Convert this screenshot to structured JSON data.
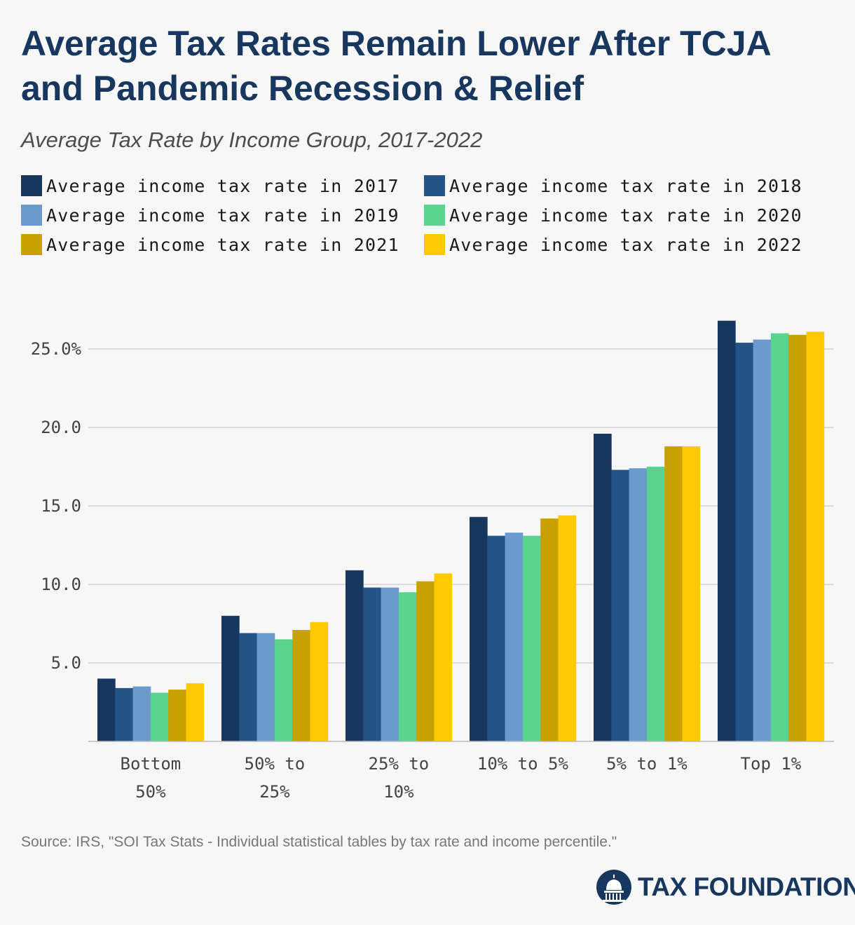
{
  "chart_data": {
    "type": "bar",
    "title": "Average Tax Rates Remain Lower After TCJA and Pandemic Recession & Relief",
    "subtitle": "Average Tax Rate by Income Group, 2017-2022",
    "categories": [
      [
        "Bottom",
        "50%"
      ],
      [
        "50% to",
        "25%"
      ],
      [
        "25% to",
        "10%"
      ],
      [
        "10% to 5%"
      ],
      [
        "5% to 1%"
      ],
      [
        "Top 1%"
      ]
    ],
    "series": [
      {
        "name": "Average income tax rate in 2017",
        "color": "#17375e",
        "values": [
          4.0,
          8.0,
          10.9,
          14.3,
          19.6,
          26.8
        ]
      },
      {
        "name": "Average income tax rate in 2018",
        "color": "#245388",
        "values": [
          3.4,
          6.9,
          9.8,
          13.1,
          17.3,
          25.4
        ]
      },
      {
        "name": "Average income tax rate in 2019",
        "color": "#6a9bcc",
        "values": [
          3.5,
          6.9,
          9.8,
          13.3,
          17.4,
          25.6
        ]
      },
      {
        "name": "Average income tax rate in 2020",
        "color": "#58d48f",
        "values": [
          3.1,
          6.5,
          9.5,
          13.1,
          17.5,
          26.0
        ]
      },
      {
        "name": "Average income tax rate in 2021",
        "color": "#c8a100",
        "values": [
          3.3,
          7.1,
          10.2,
          14.2,
          18.8,
          25.9
        ]
      },
      {
        "name": "Average income tax rate in 2022",
        "color": "#ffc800",
        "values": [
          3.7,
          7.6,
          10.7,
          14.4,
          18.8,
          26.1
        ]
      }
    ],
    "yticks": [
      "5.0",
      "10.0",
      "15.0",
      "20.0",
      "25.0%"
    ],
    "ylim": [
      0,
      27.5
    ],
    "grid": true,
    "legend": "top"
  },
  "source": "Source: IRS, \"SOI Tax Stats - Individual statistical tables by tax rate and income percentile.\"",
  "logo": {
    "text": "TAX FOUNDATION"
  }
}
